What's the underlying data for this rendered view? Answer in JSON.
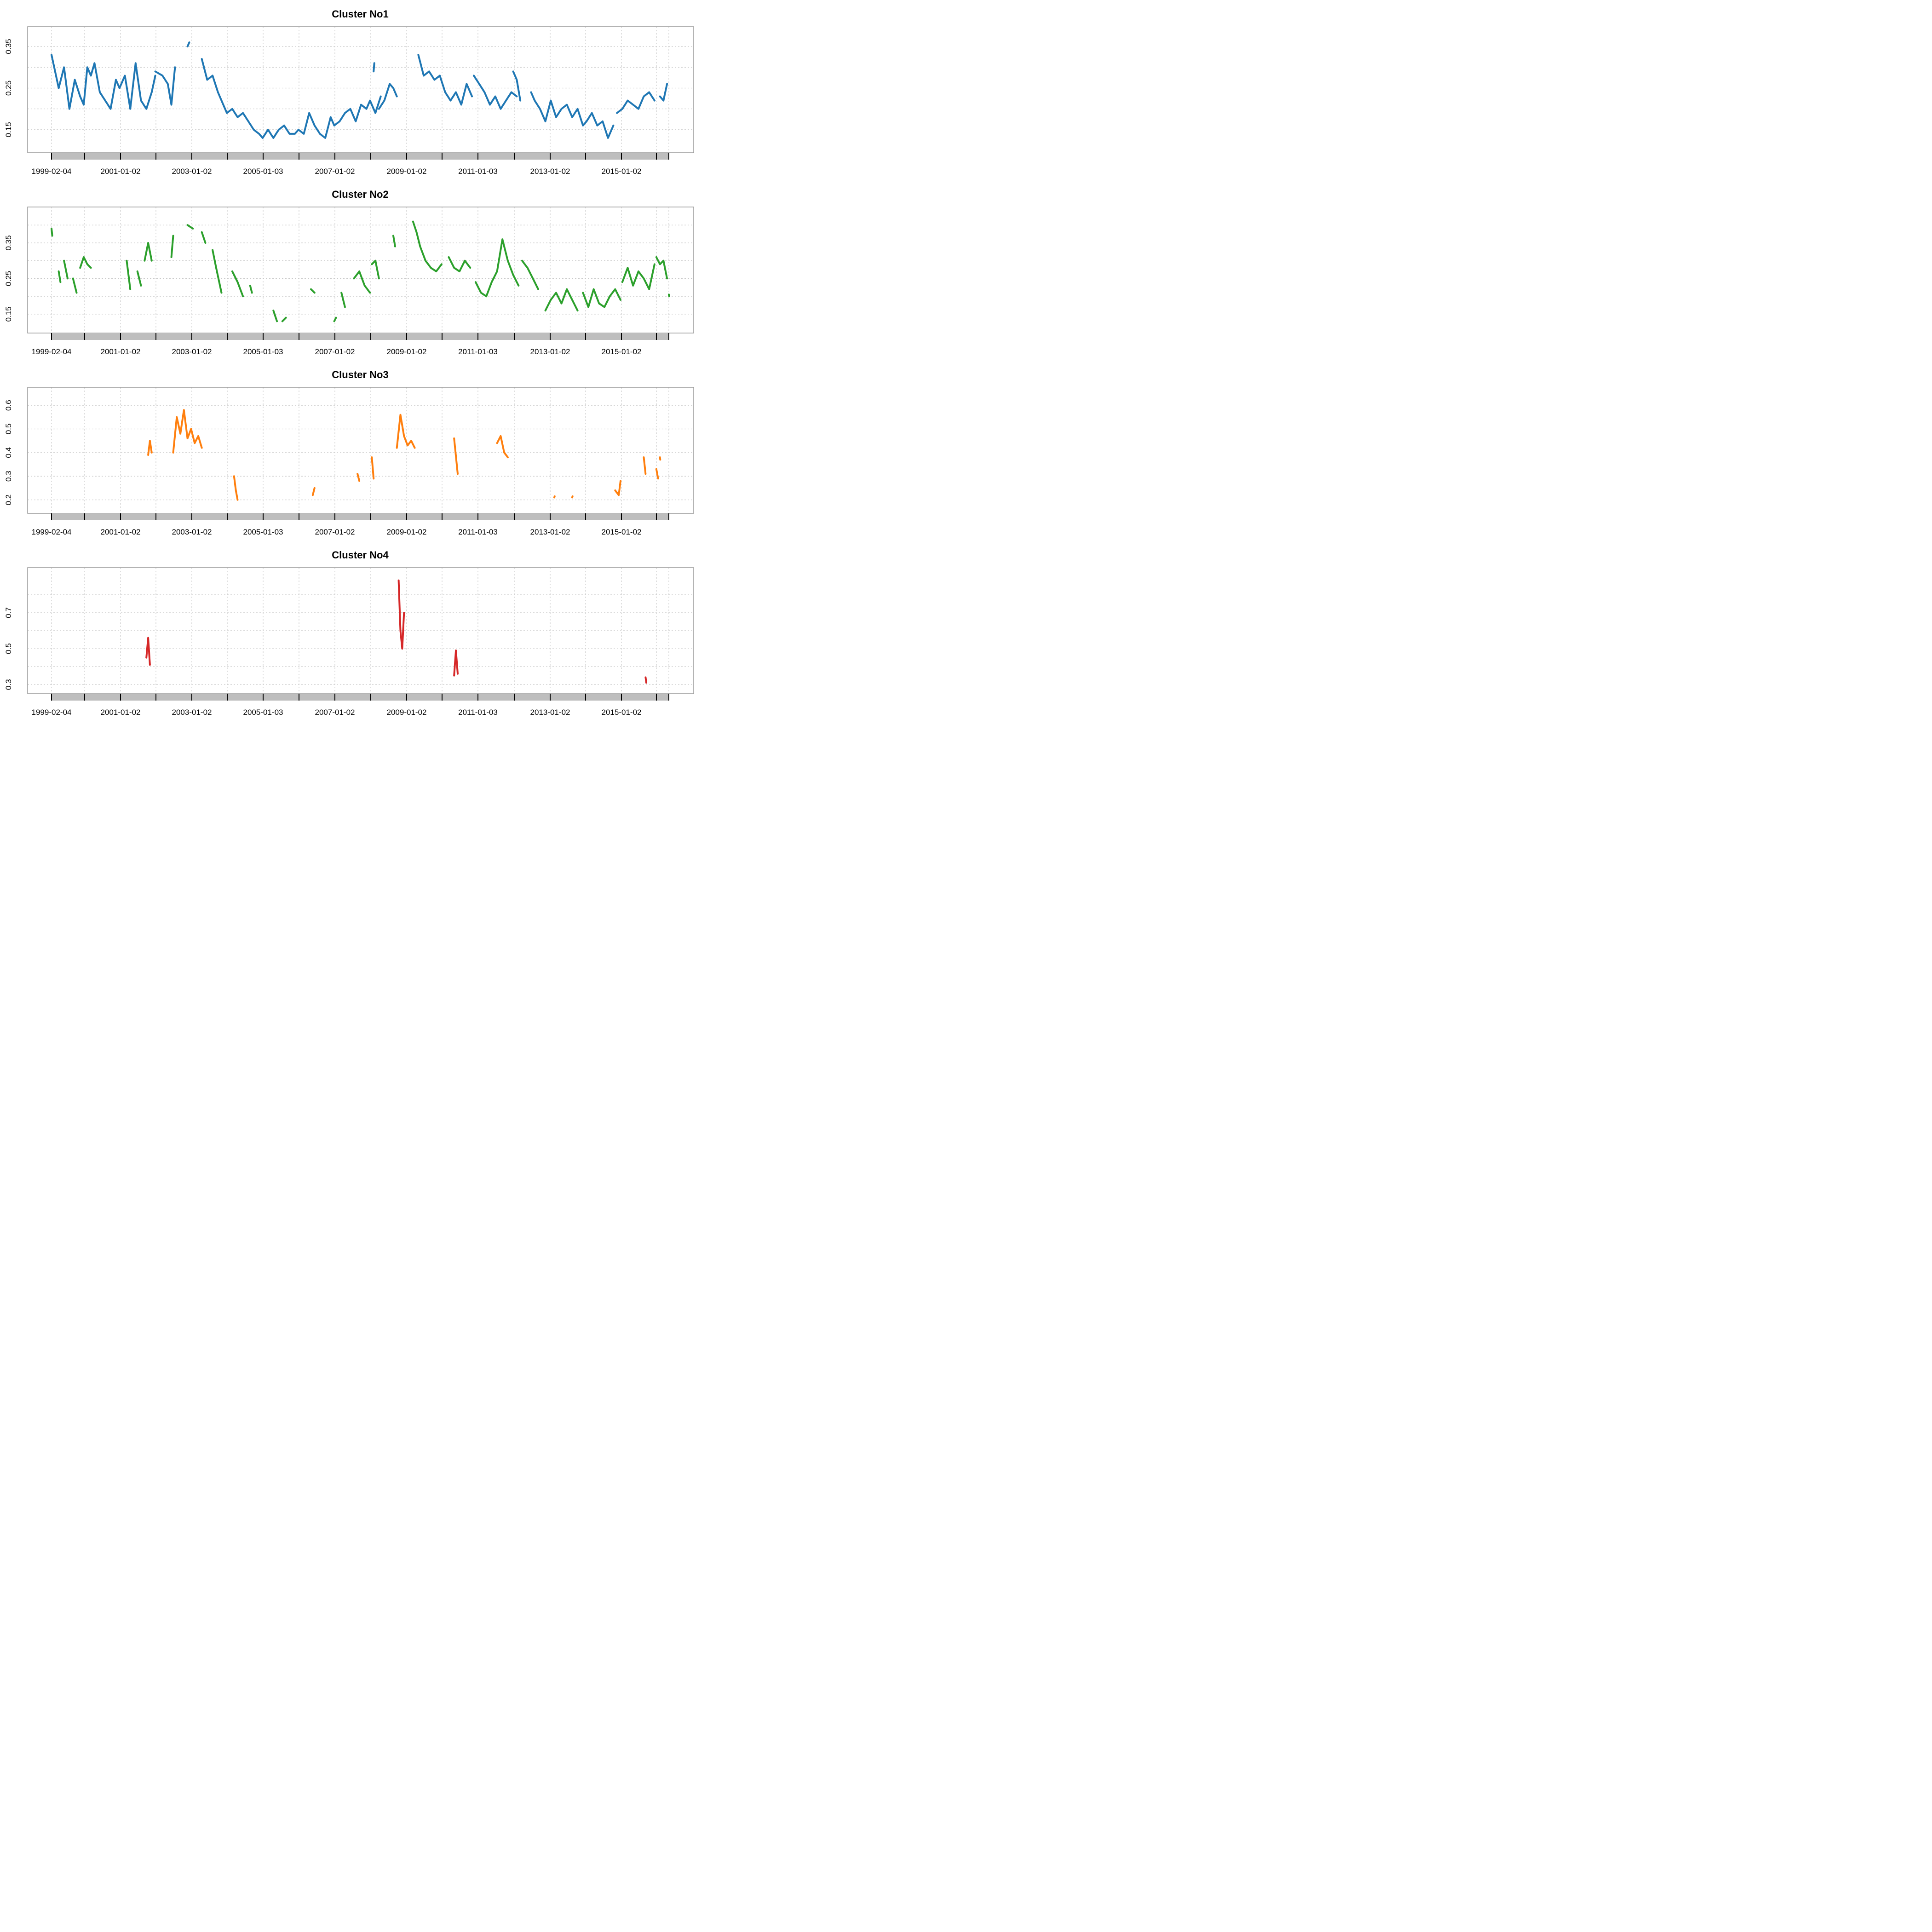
{
  "chart_data": [
    {
      "type": "line",
      "title": "Cluster No1",
      "color": "#1f77b4",
      "x_tick_labels": [
        "1999-02-04",
        "2001-01-02",
        "2003-01-02",
        "2005-01-03",
        "2007-01-02",
        "2009-01-02",
        "2011-01-03",
        "2013-01-02",
        "2015-01-02"
      ],
      "x_range": [
        1999.1,
        2016.35
      ],
      "ylim": [
        0.11,
        0.38
      ],
      "y_ticks": [
        0.15,
        0.2,
        0.25,
        0.3,
        0.35
      ],
      "y_tick_labels": [
        "0.15",
        "",
        "0.25",
        "",
        "0.35"
      ],
      "segments": [
        {
          "x": [
            1999.1,
            1999.2,
            1999.3,
            1999.45,
            1999.6,
            1999.75,
            1999.9,
            2000.0,
            2000.1,
            2000.2,
            2000.3,
            2000.45,
            2000.6,
            2000.75,
            2000.9,
            2001.0,
            2001.15,
            2001.3,
            2001.45,
            2001.6,
            2001.75,
            2001.9,
            2002.0
          ],
          "y": [
            0.33,
            0.29,
            0.25,
            0.3,
            0.2,
            0.27,
            0.23,
            0.21,
            0.3,
            0.28,
            0.31,
            0.24,
            0.22,
            0.2,
            0.27,
            0.25,
            0.28,
            0.2,
            0.31,
            0.22,
            0.2,
            0.24,
            0.28
          ]
        },
        {
          "x": [
            2002.0,
            2002.2,
            2002.35,
            2002.45,
            2002.55
          ],
          "y": [
            0.29,
            0.28,
            0.26,
            0.21,
            0.3
          ]
        },
        {
          "x": [
            2002.9,
            2002.95
          ],
          "y": [
            0.35,
            0.36
          ]
        },
        {
          "x": [
            2003.3,
            2003.45,
            2003.6,
            2003.75,
            2003.9,
            2004.0,
            2004.15,
            2004.3,
            2004.45,
            2004.6,
            2004.75,
            2004.9,
            2005.0,
            2005.15,
            2005.3,
            2005.45,
            2005.6,
            2005.75,
            2005.9,
            2006.0,
            2006.15,
            2006.3,
            2006.45,
            2006.6,
            2006.75,
            2006.9,
            2007.0,
            2007.15,
            2007.3,
            2007.45,
            2007.6,
            2007.75,
            2007.9,
            2008.0,
            2008.15,
            2008.3
          ],
          "y": [
            0.32,
            0.27,
            0.28,
            0.24,
            0.21,
            0.19,
            0.2,
            0.18,
            0.19,
            0.17,
            0.15,
            0.14,
            0.13,
            0.15,
            0.13,
            0.15,
            0.16,
            0.14,
            0.14,
            0.15,
            0.14,
            0.19,
            0.16,
            0.14,
            0.13,
            0.18,
            0.16,
            0.17,
            0.19,
            0.2,
            0.17,
            0.21,
            0.2,
            0.22,
            0.19,
            0.23
          ]
        },
        {
          "x": [
            2008.1,
            2008.12
          ],
          "y": [
            0.29,
            0.31
          ]
        },
        {
          "x": [
            2008.25,
            2008.4,
            2008.55,
            2008.65,
            2008.75
          ],
          "y": [
            0.2,
            0.22,
            0.26,
            0.25,
            0.23
          ]
        },
        {
          "x": [
            2009.35,
            2009.5,
            2009.65,
            2009.8,
            2009.95,
            2010.1,
            2010.25,
            2010.4,
            2010.55,
            2010.7,
            2010.85
          ],
          "y": [
            0.33,
            0.28,
            0.29,
            0.27,
            0.28,
            0.24,
            0.22,
            0.24,
            0.21,
            0.26,
            0.23
          ]
        },
        {
          "x": [
            2010.9,
            2011.05,
            2011.2,
            2011.35,
            2011.5,
            2011.65,
            2011.8,
            2011.95,
            2012.1
          ],
          "y": [
            0.28,
            0.26,
            0.24,
            0.21,
            0.23,
            0.2,
            0.22,
            0.24,
            0.23
          ]
        },
        {
          "x": [
            2012.0,
            2012.1,
            2012.2
          ],
          "y": [
            0.29,
            0.27,
            0.22
          ]
        },
        {
          "x": [
            2012.5,
            2012.6,
            2012.75,
            2012.9,
            2013.05,
            2013.2,
            2013.35,
            2013.5,
            2013.65,
            2013.8,
            2013.95,
            2014.05,
            2014.2,
            2014.35,
            2014.5,
            2014.65,
            2014.8
          ],
          "y": [
            0.24,
            0.22,
            0.2,
            0.17,
            0.22,
            0.18,
            0.2,
            0.21,
            0.18,
            0.2,
            0.16,
            0.17,
            0.19,
            0.16,
            0.17,
            0.13,
            0.16
          ]
        },
        {
          "x": [
            2014.9,
            2015.05,
            2015.2,
            2015.35,
            2015.5,
            2015.65,
            2015.8,
            2015.95
          ],
          "y": [
            0.19,
            0.2,
            0.22,
            0.21,
            0.2,
            0.23,
            0.24,
            0.22
          ]
        },
        {
          "x": [
            2016.1,
            2016.2,
            2016.3
          ],
          "y": [
            0.23,
            0.22,
            0.26
          ]
        }
      ]
    },
    {
      "type": "line",
      "title": "Cluster No2",
      "color": "#2ca02c",
      "x_tick_labels": [
        "1999-02-04",
        "2001-01-02",
        "2003-01-02",
        "2005-01-03",
        "2007-01-02",
        "2009-01-02",
        "2011-01-03",
        "2013-01-02",
        "2015-01-02"
      ],
      "x_range": [
        1999.1,
        2016.35
      ],
      "ylim": [
        0.115,
        0.43
      ],
      "y_ticks": [
        0.15,
        0.2,
        0.25,
        0.3,
        0.35,
        0.4
      ],
      "y_tick_labels": [
        "0.15",
        "",
        "0.25",
        "",
        "0.35",
        ""
      ],
      "segments": [
        {
          "x": [
            1999.1,
            1999.12
          ],
          "y": [
            0.39,
            0.37
          ]
        },
        {
          "x": [
            1999.3,
            1999.35
          ],
          "y": [
            0.27,
            0.24
          ]
        },
        {
          "x": [
            1999.45,
            1999.55
          ],
          "y": [
            0.3,
            0.25
          ]
        },
        {
          "x": [
            1999.7,
            1999.8
          ],
          "y": [
            0.25,
            0.21
          ]
        },
        {
          "x": [
            1999.9,
            2000.0,
            2000.1,
            2000.2
          ],
          "y": [
            0.28,
            0.31,
            0.29,
            0.28
          ]
        },
        {
          "x": [
            2001.2,
            2001.25,
            2001.3
          ],
          "y": [
            0.3,
            0.26,
            0.22
          ]
        },
        {
          "x": [
            2001.5,
            2001.6
          ],
          "y": [
            0.27,
            0.23
          ]
        },
        {
          "x": [
            2001.7,
            2001.8,
            2001.9
          ],
          "y": [
            0.3,
            0.35,
            0.3
          ]
        },
        {
          "x": [
            2002.45,
            2002.5
          ],
          "y": [
            0.31,
            0.37
          ]
        },
        {
          "x": [
            2002.9,
            2003.05
          ],
          "y": [
            0.4,
            0.39
          ]
        },
        {
          "x": [
            2003.3,
            2003.4
          ],
          "y": [
            0.38,
            0.35
          ]
        },
        {
          "x": [
            2003.6,
            2003.7,
            2003.85
          ],
          "y": [
            0.33,
            0.28,
            0.21
          ]
        },
        {
          "x": [
            2004.15,
            2004.3,
            2004.45
          ],
          "y": [
            0.27,
            0.24,
            0.2
          ]
        },
        {
          "x": [
            2004.65,
            2004.7
          ],
          "y": [
            0.23,
            0.21
          ]
        },
        {
          "x": [
            2005.3,
            2005.4
          ],
          "y": [
            0.16,
            0.13
          ]
        },
        {
          "x": [
            2005.55,
            2005.65
          ],
          "y": [
            0.13,
            0.14
          ]
        },
        {
          "x": [
            2006.35,
            2006.45
          ],
          "y": [
            0.22,
            0.21
          ]
        },
        {
          "x": [
            2007.0,
            2007.05
          ],
          "y": [
            0.13,
            0.14
          ]
        },
        {
          "x": [
            2007.2,
            2007.3
          ],
          "y": [
            0.21,
            0.17
          ]
        },
        {
          "x": [
            2007.55,
            2007.7,
            2007.85,
            2008.0
          ],
          "y": [
            0.25,
            0.27,
            0.23,
            0.21
          ]
        },
        {
          "x": [
            2008.05,
            2008.15,
            2008.25
          ],
          "y": [
            0.29,
            0.3,
            0.25
          ]
        },
        {
          "x": [
            2008.65,
            2008.7
          ],
          "y": [
            0.37,
            0.34
          ]
        },
        {
          "x": [
            2009.2,
            2009.3,
            2009.4,
            2009.55,
            2009.7,
            2009.85,
            2010.0
          ],
          "y": [
            0.41,
            0.38,
            0.34,
            0.3,
            0.28,
            0.27,
            0.29
          ]
        },
        {
          "x": [
            2010.2,
            2010.35,
            2010.5,
            2010.65,
            2010.8
          ],
          "y": [
            0.31,
            0.28,
            0.27,
            0.3,
            0.28
          ]
        },
        {
          "x": [
            2010.95,
            2011.1,
            2011.25,
            2011.4,
            2011.55,
            2011.7,
            2011.85,
            2012.0,
            2012.15
          ],
          "y": [
            0.24,
            0.21,
            0.2,
            0.24,
            0.27,
            0.36,
            0.3,
            0.26,
            0.23
          ]
        },
        {
          "x": [
            2012.25,
            2012.4,
            2012.55,
            2012.7
          ],
          "y": [
            0.3,
            0.28,
            0.25,
            0.22
          ]
        },
        {
          "x": [
            2012.9,
            2013.05,
            2013.2,
            2013.35,
            2013.5,
            2013.65,
            2013.8
          ],
          "y": [
            0.16,
            0.19,
            0.21,
            0.18,
            0.22,
            0.19,
            0.16
          ]
        },
        {
          "x": [
            2013.95,
            2014.1,
            2014.25,
            2014.4,
            2014.55,
            2014.7,
            2014.85,
            2015.0
          ],
          "y": [
            0.21,
            0.17,
            0.22,
            0.18,
            0.17,
            0.2,
            0.22,
            0.19
          ]
        },
        {
          "x": [
            2015.05,
            2015.2,
            2015.35,
            2015.5,
            2015.65,
            2015.8,
            2015.95
          ],
          "y": [
            0.24,
            0.28,
            0.23,
            0.27,
            0.25,
            0.22,
            0.29
          ]
        },
        {
          "x": [
            2016.0,
            2016.1,
            2016.2,
            2016.3
          ],
          "y": [
            0.31,
            0.29,
            0.3,
            0.25
          ]
        },
        {
          "x": [
            2016.35,
            2016.36
          ],
          "y": [
            0.205,
            0.2
          ]
        }
      ]
    },
    {
      "type": "line",
      "title": "Cluster No3",
      "color": "#ff7f0e",
      "x_tick_labels": [
        "1999-02-04",
        "2001-01-02",
        "2003-01-02",
        "2005-01-03",
        "2007-01-02",
        "2009-01-02",
        "2011-01-03",
        "2013-01-02",
        "2015-01-02"
      ],
      "x_range": [
        1999.1,
        2016.35
      ],
      "ylim": [
        0.17,
        0.645
      ],
      "y_ticks": [
        0.2,
        0.3,
        0.4,
        0.5,
        0.6
      ],
      "y_tick_labels": [
        "0.2",
        "0.3",
        "0.4",
        "0.5",
        "0.6"
      ],
      "segments": [
        {
          "x": [
            2001.8,
            2001.85,
            2001.9
          ],
          "y": [
            0.39,
            0.45,
            0.4
          ]
        },
        {
          "x": [
            2002.5,
            2002.6,
            2002.7,
            2002.8,
            2002.9,
            2003.0,
            2003.1,
            2003.2,
            2003.3
          ],
          "y": [
            0.4,
            0.55,
            0.48,
            0.58,
            0.46,
            0.5,
            0.44,
            0.47,
            0.42
          ]
        },
        {
          "x": [
            2004.2,
            2004.25,
            2004.3
          ],
          "y": [
            0.3,
            0.24,
            0.2
          ]
        },
        {
          "x": [
            2006.4,
            2006.45
          ],
          "y": [
            0.22,
            0.25
          ]
        },
        {
          "x": [
            2007.65,
            2007.7
          ],
          "y": [
            0.31,
            0.28
          ]
        },
        {
          "x": [
            2008.05,
            2008.1
          ],
          "y": [
            0.38,
            0.29
          ]
        },
        {
          "x": [
            2008.75,
            2008.85,
            2008.95,
            2009.05,
            2009.15,
            2009.25
          ],
          "y": [
            0.42,
            0.56,
            0.47,
            0.43,
            0.45,
            0.42
          ]
        },
        {
          "x": [
            2010.35,
            2010.45
          ],
          "y": [
            0.46,
            0.31
          ]
        },
        {
          "x": [
            2011.55,
            2011.65,
            2011.75,
            2011.85
          ],
          "y": [
            0.44,
            0.47,
            0.4,
            0.38
          ]
        },
        {
          "x": [
            2013.15,
            2013.16
          ],
          "y": [
            0.21,
            0.215
          ]
        },
        {
          "x": [
            2013.65,
            2013.66
          ],
          "y": [
            0.21,
            0.215
          ]
        },
        {
          "x": [
            2014.85,
            2014.95,
            2015.0
          ],
          "y": [
            0.24,
            0.22,
            0.28
          ]
        },
        {
          "x": [
            2015.65,
            2015.7
          ],
          "y": [
            0.38,
            0.31
          ]
        },
        {
          "x": [
            2016.0,
            2016.05
          ],
          "y": [
            0.33,
            0.29
          ]
        },
        {
          "x": [
            2016.1,
            2016.11
          ],
          "y": [
            0.38,
            0.37
          ]
        }
      ]
    },
    {
      "type": "line",
      "title": "Cluster No4",
      "color": "#d62728",
      "x_tick_labels": [
        "1999-02-04",
        "2001-01-02",
        "2003-01-02",
        "2005-01-03",
        "2007-01-02",
        "2009-01-02",
        "2011-01-03",
        "2013-01-02",
        "2015-01-02"
      ],
      "x_range": [
        1999.1,
        2016.35
      ],
      "ylim": [
        0.285,
        0.91
      ],
      "y_ticks": [
        0.3,
        0.4,
        0.5,
        0.6,
        0.7,
        0.8
      ],
      "y_tick_labels": [
        "0.3",
        "",
        "0.5",
        "",
        "0.7",
        ""
      ],
      "segments": [
        {
          "x": [
            2001.75,
            2001.8,
            2001.85
          ],
          "y": [
            0.45,
            0.56,
            0.41
          ]
        },
        {
          "x": [
            2008.8,
            2008.85,
            2008.9,
            2008.95
          ],
          "y": [
            0.88,
            0.6,
            0.5,
            0.7
          ]
        },
        {
          "x": [
            2010.35,
            2010.4,
            2010.45
          ],
          "y": [
            0.35,
            0.49,
            0.36
          ]
        },
        {
          "x": [
            2015.7,
            2015.72
          ],
          "y": [
            0.34,
            0.31
          ]
        }
      ]
    }
  ]
}
